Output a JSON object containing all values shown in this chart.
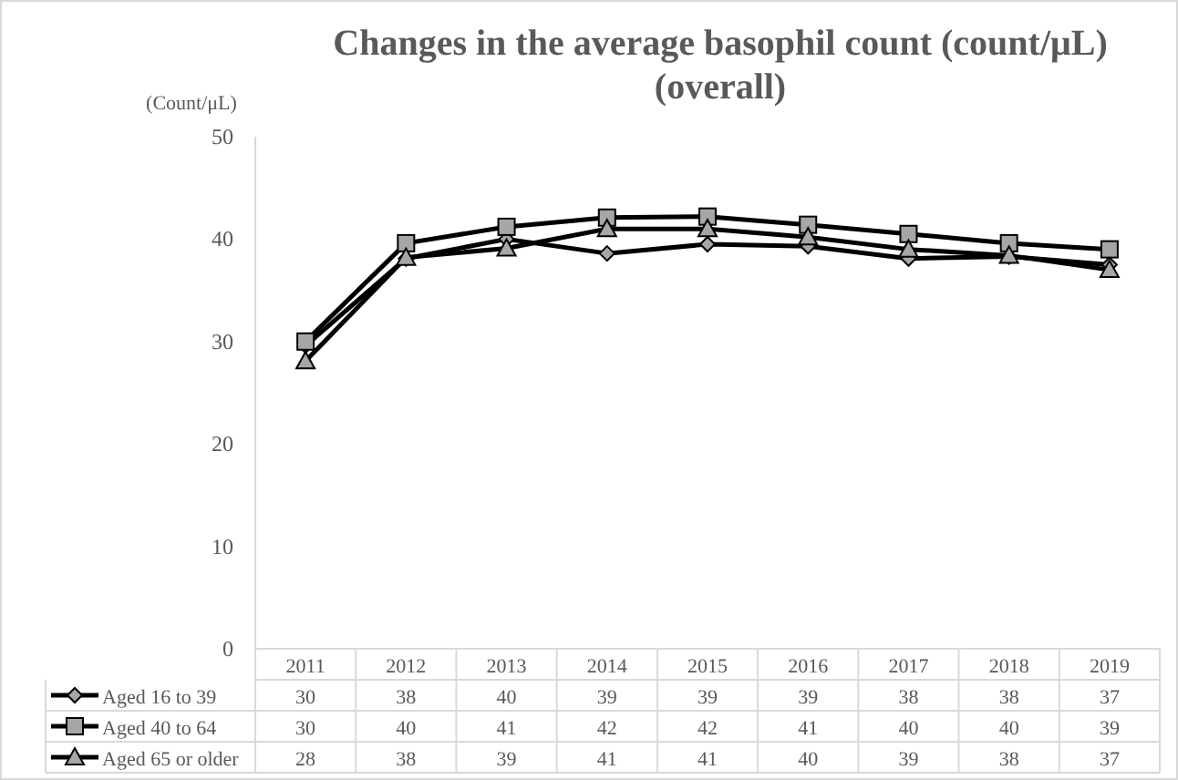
{
  "chart_data": {
    "type": "line",
    "title": "Changes in the average basophil count (count/μL)\n(overall)",
    "ylabel": "(Count/μL)",
    "categories": [
      "2011",
      "2012",
      "2013",
      "2014",
      "2015",
      "2016",
      "2017",
      "2018",
      "2019"
    ],
    "ylim": [
      0,
      50
    ],
    "yticks": [
      0,
      10,
      20,
      30,
      40,
      50
    ],
    "grid": false,
    "legend": "bottom",
    "series": [
      {
        "name": "Aged 16 to 39",
        "color": "#000000",
        "marker": "diamond",
        "values": [
          29.6,
          38.1,
          40.0,
          38.6,
          39.5,
          39.3,
          38.1,
          38.3,
          37.5
        ],
        "value_labels": [
          "30",
          "38",
          "40",
          "39",
          "39",
          "39",
          "38",
          "38",
          "37"
        ]
      },
      {
        "name": "Aged 40 to 64",
        "color": "#000000",
        "marker": "square",
        "values": [
          30.0,
          39.6,
          41.2,
          42.1,
          42.2,
          41.4,
          40.5,
          39.6,
          39.0
        ],
        "value_labels": [
          "30",
          "40",
          "41",
          "42",
          "42",
          "41",
          "40",
          "40",
          "39"
        ]
      },
      {
        "name": "Aged 65 or older",
        "color": "#000000",
        "marker": "triangle",
        "values": [
          28.1,
          38.2,
          39.1,
          41.0,
          41.0,
          40.2,
          39.0,
          38.4,
          37.0
        ],
        "value_labels": [
          "28",
          "38",
          "39",
          "41",
          "41",
          "40",
          "39",
          "38",
          "37"
        ]
      }
    ]
  }
}
